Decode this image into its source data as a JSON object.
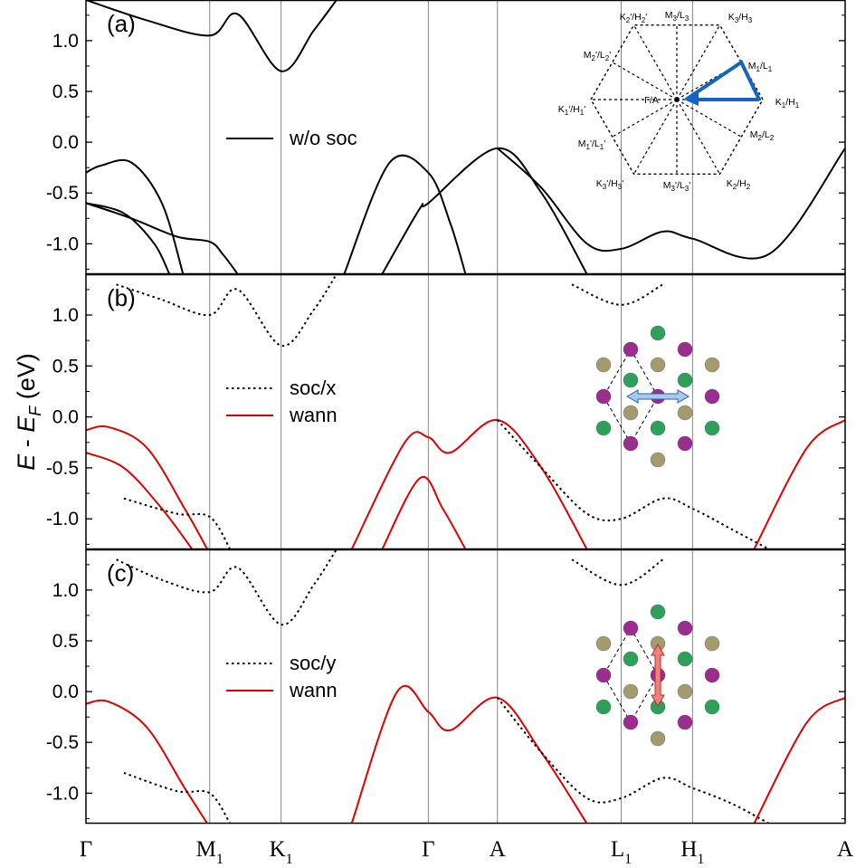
{
  "chart_data": {
    "type": "line",
    "ylabel": "E - E_F (eV)",
    "ylabel_parts": {
      "e": "E",
      "dash": "-",
      "ef": "E",
      "ef_sub": "F",
      "unit": "(eV)"
    },
    "ylim": [
      -1.3,
      1.4
    ],
    "yticks": [
      "1.0",
      "0.5",
      "0.0",
      "-0.5",
      "-1.0"
    ],
    "ytick_values": [
      1.0,
      0.5,
      0.0,
      -0.5,
      -1.0
    ],
    "k_path": [
      "Γ",
      "M1",
      "K1",
      "Γ",
      "A",
      "L1",
      "H1",
      "A"
    ],
    "k_labels": [
      {
        "main": "Γ",
        "sub": ""
      },
      {
        "main": "M",
        "sub": "1"
      },
      {
        "main": "K",
        "sub": "1"
      },
      {
        "main": "Γ",
        "sub": ""
      },
      {
        "main": "A",
        "sub": ""
      },
      {
        "main": "L",
        "sub": "1"
      },
      {
        "main": "H",
        "sub": "1"
      },
      {
        "main": "A",
        "sub": ""
      }
    ],
    "k_positions": [
      0.0,
      0.163,
      0.257,
      0.451,
      0.542,
      0.705,
      0.799,
      1.0
    ],
    "panels": [
      {
        "label": "(a)",
        "legend": [
          {
            "text": "w/o soc",
            "style": "solid-black"
          }
        ],
        "series": [
          {
            "name": "w/o soc",
            "style": "solid",
            "color": "#000000",
            "x": [
              0,
              0.08,
              0.163,
              0.2,
              0.257,
              0.3,
              0.33
            ],
            "y": [
              1.4,
              1.2,
              1.05,
              1.26,
              0.7,
              1.1,
              1.4
            ]
          },
          {
            "name": "w/o soc",
            "style": "solid",
            "color": "#000000",
            "x": [
              0,
              0.02,
              0.06,
              0.1,
              0.128
            ],
            "y": [
              -0.3,
              -0.23,
              -0.2,
              -0.6,
              -1.3
            ]
          },
          {
            "name": "w/o soc",
            "style": "solid",
            "color": "#000000",
            "x": [
              0,
              0.06,
              0.12,
              0.163,
              0.18,
              0.2
            ],
            "y": [
              -0.6,
              -0.75,
              -0.93,
              -0.98,
              -1.1,
              -1.3
            ]
          },
          {
            "name": "w/o soc",
            "style": "solid",
            "color": "#000000",
            "x": [
              0,
              0.05,
              0.09,
              0.11
            ],
            "y": [
              -0.6,
              -0.7,
              -1.0,
              -1.3
            ]
          },
          {
            "name": "w/o soc",
            "style": "solid",
            "color": "#000000",
            "x": [
              0.34,
              0.4,
              0.451,
              0.48,
              0.5
            ],
            "y": [
              -1.3,
              -0.2,
              -0.3,
              -0.8,
              -1.3
            ]
          },
          {
            "name": "w/o soc",
            "style": "solid",
            "color": "#000000",
            "x": [
              0.39,
              0.44,
              0.451,
              0.542,
              0.6,
              0.66
            ],
            "y": [
              -1.3,
              -0.65,
              -0.6,
              -0.06,
              -0.5,
              -1.3
            ]
          },
          {
            "name": "w/o soc",
            "style": "solid",
            "color": "#000000",
            "x": [
              0.542,
              0.6,
              0.66,
              0.705,
              0.76,
              0.799,
              0.9,
              1.0
            ],
            "y": [
              -0.06,
              -0.45,
              -1.0,
              -1.05,
              -0.88,
              -0.95,
              -1.1,
              -0.06
            ]
          }
        ]
      },
      {
        "label": "(b)",
        "legend": [
          {
            "text": "soc/x",
            "style": "dotted-black"
          },
          {
            "text": "wann",
            "style": "solid-red"
          }
        ],
        "series": [
          {
            "name": "soc/x",
            "style": "dotted",
            "color": "#000000",
            "x": [
              0.04,
              0.1,
              0.163,
              0.2,
              0.257,
              0.3,
              0.33
            ],
            "y": [
              1.3,
              1.15,
              1.0,
              1.25,
              0.7,
              1.05,
              1.4
            ]
          },
          {
            "name": "soc/x",
            "style": "dotted",
            "color": "#000000",
            "x": [
              0.64,
              0.705,
              0.76
            ],
            "y": [
              1.3,
              1.1,
              1.3
            ]
          },
          {
            "name": "wann",
            "style": "solid",
            "color": "#e00000",
            "x": [
              0,
              0.03,
              0.08,
              0.13,
              0.16
            ],
            "y": [
              -0.13,
              -0.1,
              -0.3,
              -0.9,
              -1.3
            ]
          },
          {
            "name": "wann",
            "style": "solid",
            "color": "#e00000",
            "x": [
              0,
              0.05,
              0.1,
              0.14
            ],
            "y": [
              -0.35,
              -0.5,
              -0.9,
              -1.3
            ]
          },
          {
            "name": "soc/x",
            "style": "dotted",
            "color": "#000000",
            "x": [
              0.05,
              0.12,
              0.163,
              0.19
            ],
            "y": [
              -0.8,
              -0.95,
              -0.98,
              -1.3
            ]
          },
          {
            "name": "wann",
            "style": "solid",
            "color": "#e00000",
            "x": [
              0.35,
              0.42,
              0.451,
              0.48,
              0.542,
              0.6,
              0.66
            ],
            "y": [
              -1.3,
              -0.25,
              -0.2,
              -0.35,
              -0.03,
              -0.5,
              -1.3
            ]
          },
          {
            "name": "wann",
            "style": "solid",
            "color": "#e00000",
            "x": [
              0.39,
              0.44,
              0.47,
              0.5
            ],
            "y": [
              -1.3,
              -0.6,
              -0.9,
              -1.3
            ]
          },
          {
            "name": "soc/x",
            "style": "dotted",
            "color": "#000000",
            "x": [
              0.542,
              0.6,
              0.66,
              0.705,
              0.76,
              0.799,
              0.85,
              0.9
            ],
            "y": [
              -0.03,
              -0.5,
              -0.95,
              -1.0,
              -0.8,
              -0.9,
              -1.1,
              -1.3
            ]
          },
          {
            "name": "wann",
            "style": "solid",
            "color": "#e00000",
            "x": [
              0.88,
              0.95,
              1.0
            ],
            "y": [
              -1.3,
              -0.3,
              -0.03
            ]
          }
        ]
      },
      {
        "label": "(c)",
        "legend": [
          {
            "text": "soc/y",
            "style": "dotted-black"
          },
          {
            "text": "wann",
            "style": "solid-red"
          }
        ],
        "series": [
          {
            "name": "soc/y",
            "style": "dotted",
            "color": "#000000",
            "x": [
              0.04,
              0.1,
              0.163,
              0.2,
              0.257,
              0.3,
              0.33
            ],
            "y": [
              1.3,
              1.1,
              0.98,
              1.22,
              0.66,
              1.05,
              1.4
            ]
          },
          {
            "name": "soc/y",
            "style": "dotted",
            "color": "#000000",
            "x": [
              0.64,
              0.705,
              0.76
            ],
            "y": [
              1.3,
              1.05,
              1.3
            ]
          },
          {
            "name": "wann",
            "style": "solid",
            "color": "#e00000",
            "x": [
              0,
              0.03,
              0.08,
              0.13,
              0.16
            ],
            "y": [
              -0.12,
              -0.1,
              -0.35,
              -0.95,
              -1.3
            ]
          },
          {
            "name": "soc/y",
            "style": "dotted",
            "color": "#000000",
            "x": [
              0.05,
              0.12,
              0.163,
              0.19
            ],
            "y": [
              -0.8,
              -0.98,
              -1.0,
              -1.3
            ]
          },
          {
            "name": "wann",
            "style": "solid",
            "color": "#e00000",
            "x": [
              0.35,
              0.41,
              0.451,
              0.48,
              0.542,
              0.6,
              0.66
            ],
            "y": [
              -1.3,
              0.0,
              -0.2,
              -0.38,
              -0.06,
              -0.6,
              -1.3
            ]
          },
          {
            "name": "soc/y",
            "style": "dotted",
            "color": "#000000",
            "x": [
              0.542,
              0.6,
              0.66,
              0.705,
              0.76,
              0.799,
              0.85,
              0.9
            ],
            "y": [
              -0.06,
              -0.6,
              -1.05,
              -1.05,
              -0.85,
              -0.95,
              -1.1,
              -1.3
            ]
          },
          {
            "name": "wann",
            "style": "solid",
            "color": "#e00000",
            "x": [
              0.88,
              0.95,
              1.0
            ],
            "y": [
              -1.3,
              -0.3,
              -0.06
            ]
          }
        ]
      }
    ],
    "inset_bz": {
      "labels": [
        {
          "main": "K",
          "sub": "2",
          "rest": "'/H",
          "sub2": "2",
          "end": "'"
        },
        {
          "main": "M",
          "sub": "3",
          "rest": "/L",
          "sub2": "3",
          "end": ""
        },
        {
          "main": "K",
          "sub": "3",
          "rest": "/H",
          "sub2": "3",
          "end": ""
        },
        {
          "main": "M",
          "sub": "2",
          "rest": "'/L",
          "sub2": "2",
          "end": "'"
        },
        {
          "main": "M",
          "sub": "1",
          "rest": "/L",
          "sub2": "1",
          "end": ""
        },
        {
          "main": "K",
          "sub": "1",
          "rest": "'/H",
          "sub2": "1",
          "end": "'"
        },
        {
          "main": "Γ/A",
          "sub": "",
          "rest": "",
          "sub2": "",
          "end": ""
        },
        {
          "main": "K",
          "sub": "1",
          "rest": "/H",
          "sub2": "1",
          "end": ""
        },
        {
          "main": "M",
          "sub": "1",
          "rest": "'/L",
          "sub2": "1",
          "end": "'"
        },
        {
          "main": "M",
          "sub": "2",
          "rest": "/L",
          "sub2": "2",
          "end": ""
        },
        {
          "main": "K",
          "sub": "3",
          "rest": "'/H",
          "sub2": "3",
          "end": "'"
        },
        {
          "main": "M",
          "sub": "3",
          "rest": "'/L",
          "sub2": "3",
          "end": "'"
        },
        {
          "main": "K",
          "sub": "2",
          "rest": "/H",
          "sub2": "2",
          "end": ""
        }
      ]
    },
    "colors": {
      "line_black": "#000000",
      "line_red": "#e00000",
      "bz_path": "#1565c0",
      "atom_purple": "#9b2d8f",
      "atom_green": "#2ea05a",
      "atom_olive": "#a39b6e",
      "arrow_blue": "#a8c8f0",
      "arrow_red": "#f08080"
    }
  }
}
